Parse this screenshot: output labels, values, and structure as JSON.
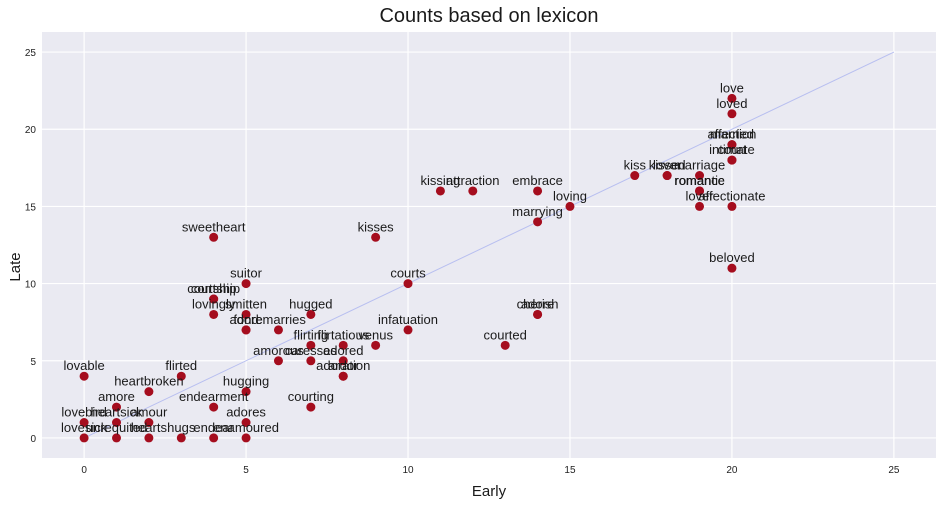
{
  "chart_data": {
    "type": "scatter",
    "title": "Counts based on lexicon",
    "xlabel": "Early",
    "ylabel": "Late",
    "xlim": [
      -1.3,
      26.3
    ],
    "ylim": [
      -1.3,
      26.3
    ],
    "xticks": [
      0,
      5,
      10,
      15,
      20,
      25
    ],
    "yticks": [
      0,
      5,
      10,
      15,
      20,
      25
    ],
    "grid": true,
    "reference_line": {
      "from": [
        0,
        0
      ],
      "to": [
        25,
        25
      ],
      "color": "#b8bff0"
    },
    "style": {
      "background": "#eaeaf2",
      "grid_color": "#ffffff",
      "marker_color": "#a50d1e"
    },
    "points": [
      {
        "label": "love",
        "x": 20,
        "y": 22
      },
      {
        "label": "loved",
        "x": 20,
        "y": 21
      },
      {
        "label": "affection",
        "x": 20,
        "y": 19
      },
      {
        "label": "married",
        "x": 20,
        "y": 19
      },
      {
        "label": "intimate",
        "x": 20,
        "y": 18
      },
      {
        "label": "court",
        "x": 20,
        "y": 18
      },
      {
        "label": "kiss",
        "x": 17,
        "y": 17
      },
      {
        "label": "kissed",
        "x": 18,
        "y": 17
      },
      {
        "label": "lover",
        "x": 18,
        "y": 17
      },
      {
        "label": "marriage",
        "x": 19,
        "y": 17
      },
      {
        "label": "romantic",
        "x": 19,
        "y": 16
      },
      {
        "label": "romance",
        "x": 19,
        "y": 16
      },
      {
        "label": "lover",
        "x": 19,
        "y": 15
      },
      {
        "label": "affectionate",
        "x": 20,
        "y": 15
      },
      {
        "label": "beloved",
        "x": 20,
        "y": 11
      },
      {
        "label": "kissing",
        "x": 11,
        "y": 16
      },
      {
        "label": "attraction",
        "x": 12,
        "y": 16
      },
      {
        "label": "embrace",
        "x": 14,
        "y": 16
      },
      {
        "label": "loving",
        "x": 15,
        "y": 15
      },
      {
        "label": "marrying",
        "x": 14,
        "y": 14
      },
      {
        "label": "kisses",
        "x": 9,
        "y": 13
      },
      {
        "label": "sweetheart",
        "x": 4,
        "y": 13
      },
      {
        "label": "courts",
        "x": 10,
        "y": 10
      },
      {
        "label": "suitor",
        "x": 5,
        "y": 10
      },
      {
        "label": "courtship",
        "x": 4,
        "y": 9
      },
      {
        "label": "cortship",
        "x": 4,
        "y": 9
      },
      {
        "label": "lovingly",
        "x": 4,
        "y": 8
      },
      {
        "label": "smitten",
        "x": 5,
        "y": 8
      },
      {
        "label": "hugged",
        "x": 7,
        "y": 8
      },
      {
        "label": "cherish",
        "x": 14,
        "y": 8
      },
      {
        "label": "adore",
        "x": 14,
        "y": 8
      },
      {
        "label": "fond",
        "x": 5,
        "y": 7
      },
      {
        "label": "adore",
        "x": 5,
        "y": 7
      },
      {
        "label": "remarries",
        "x": 6,
        "y": 7
      },
      {
        "label": "infatuation",
        "x": 10,
        "y": 7
      },
      {
        "label": "flirting",
        "x": 7,
        "y": 6
      },
      {
        "label": "flirtatious",
        "x": 8,
        "y": 6
      },
      {
        "label": "venus",
        "x": 9,
        "y": 6
      },
      {
        "label": "courted",
        "x": 13,
        "y": 6
      },
      {
        "label": "amorous",
        "x": 6,
        "y": 5
      },
      {
        "label": "caresses",
        "x": 7,
        "y": 5
      },
      {
        "label": "adored",
        "x": 8,
        "y": 5
      },
      {
        "label": "adoration",
        "x": 8,
        "y": 4
      },
      {
        "label": "ardor",
        "x": 8,
        "y": 4
      },
      {
        "label": "lovable",
        "x": 0,
        "y": 4
      },
      {
        "label": "flirted",
        "x": 3,
        "y": 4
      },
      {
        "label": "heartbroken",
        "x": 2,
        "y": 3
      },
      {
        "label": "hugging",
        "x": 5,
        "y": 3
      },
      {
        "label": "amore",
        "x": 1,
        "y": 2
      },
      {
        "label": "endearment",
        "x": 4,
        "y": 2
      },
      {
        "label": "courting",
        "x": 7,
        "y": 2
      },
      {
        "label": "heartsick",
        "x": 1,
        "y": 1
      },
      {
        "label": "amour",
        "x": 2,
        "y": 1
      },
      {
        "label": "adores",
        "x": 5,
        "y": 1
      },
      {
        "label": "lovebird",
        "x": 0,
        "y": 1
      },
      {
        "label": "hearts",
        "x": 2,
        "y": 0
      },
      {
        "label": "hugs",
        "x": 3,
        "y": 0
      },
      {
        "label": "endear",
        "x": 4,
        "y": 0
      },
      {
        "label": "enamoured",
        "x": 5,
        "y": 0
      },
      {
        "label": "lovesick",
        "x": 0,
        "y": 0
      },
      {
        "label": "unrequited",
        "x": 1,
        "y": 0
      }
    ]
  }
}
